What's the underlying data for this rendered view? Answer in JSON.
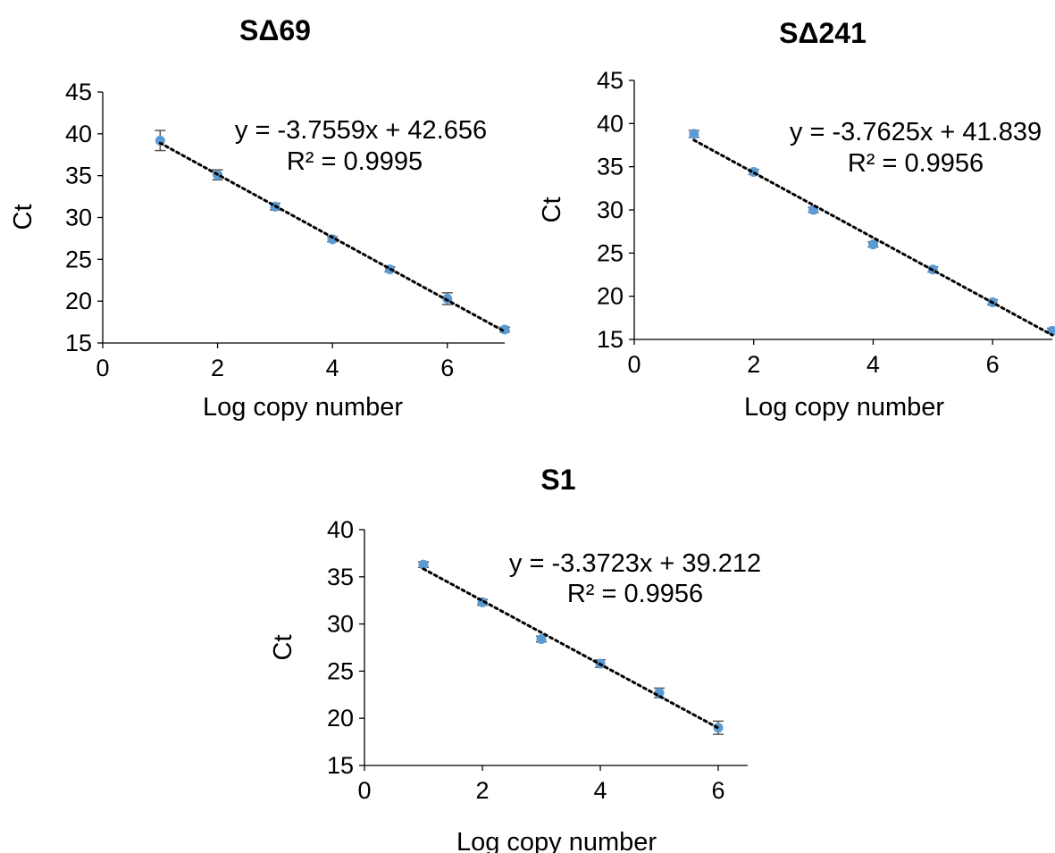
{
  "chart_data": [
    {
      "type": "scatter",
      "title": "SΔ69",
      "xlabel": "Log copy number",
      "ylabel": "Ct",
      "xlim": [
        0,
        7
      ],
      "ylim": [
        15,
        45
      ],
      "xticks": [
        0,
        2,
        4,
        6
      ],
      "yticks": [
        15,
        20,
        25,
        30,
        35,
        40,
        45
      ],
      "x": [
        1,
        2,
        3,
        4,
        5,
        6,
        7
      ],
      "y": [
        39.2,
        35.1,
        31.3,
        27.4,
        23.8,
        20.3,
        16.6
      ],
      "error": [
        1.2,
        0.6,
        0.4,
        0.3,
        0.3,
        0.7,
        0.3
      ],
      "trendline": {
        "type": "linear",
        "slope": -3.7559,
        "intercept": 42.656
      },
      "equation": "y = -3.7559x + 42.656",
      "r_squared": "R² = 0.9995",
      "marker_color": "#5B9BD5",
      "trendline_color": "#000000",
      "grid": false
    },
    {
      "type": "scatter",
      "title": "SΔ241",
      "xlabel": "Log copy number",
      "ylabel": "Ct",
      "xlim": [
        0,
        7
      ],
      "ylim": [
        15,
        45
      ],
      "xticks": [
        0,
        2,
        4,
        6
      ],
      "yticks": [
        15,
        20,
        25,
        30,
        35,
        40,
        45
      ],
      "x": [
        1,
        2,
        3,
        4,
        5,
        6,
        7
      ],
      "y": [
        38.8,
        34.4,
        30.0,
        26.0,
        23.1,
        19.3,
        16.0
      ],
      "error": [
        0.4,
        0.3,
        0.3,
        0.3,
        0.3,
        0.3,
        0.3
      ],
      "trendline": {
        "type": "linear",
        "slope": -3.7625,
        "intercept": 41.839
      },
      "equation": "y = -3.7625x + 41.839",
      "r_squared": "R² = 0.9956",
      "marker_color": "#5B9BD5",
      "trendline_color": "#000000",
      "grid": false
    },
    {
      "type": "scatter",
      "title": "S1",
      "xlabel": "Log copy number",
      "ylabel": "Ct",
      "xlim": [
        0,
        6.5
      ],
      "ylim": [
        15,
        40
      ],
      "xticks": [
        0,
        2,
        4,
        6
      ],
      "yticks": [
        15,
        20,
        25,
        30,
        35,
        40
      ],
      "x": [
        1,
        2,
        3,
        4,
        5,
        6
      ],
      "y": [
        36.3,
        32.3,
        28.4,
        25.8,
        22.7,
        19.0
      ],
      "error": [
        0.3,
        0.3,
        0.3,
        0.4,
        0.5,
        0.7
      ],
      "trendline": {
        "type": "linear",
        "slope": -3.3723,
        "intercept": 39.212
      },
      "equation": "y = -3.3723x + 39.212",
      "r_squared": "R² = 0.9956",
      "marker_color": "#5B9BD5",
      "trendline_color": "#000000",
      "grid": false
    }
  ]
}
